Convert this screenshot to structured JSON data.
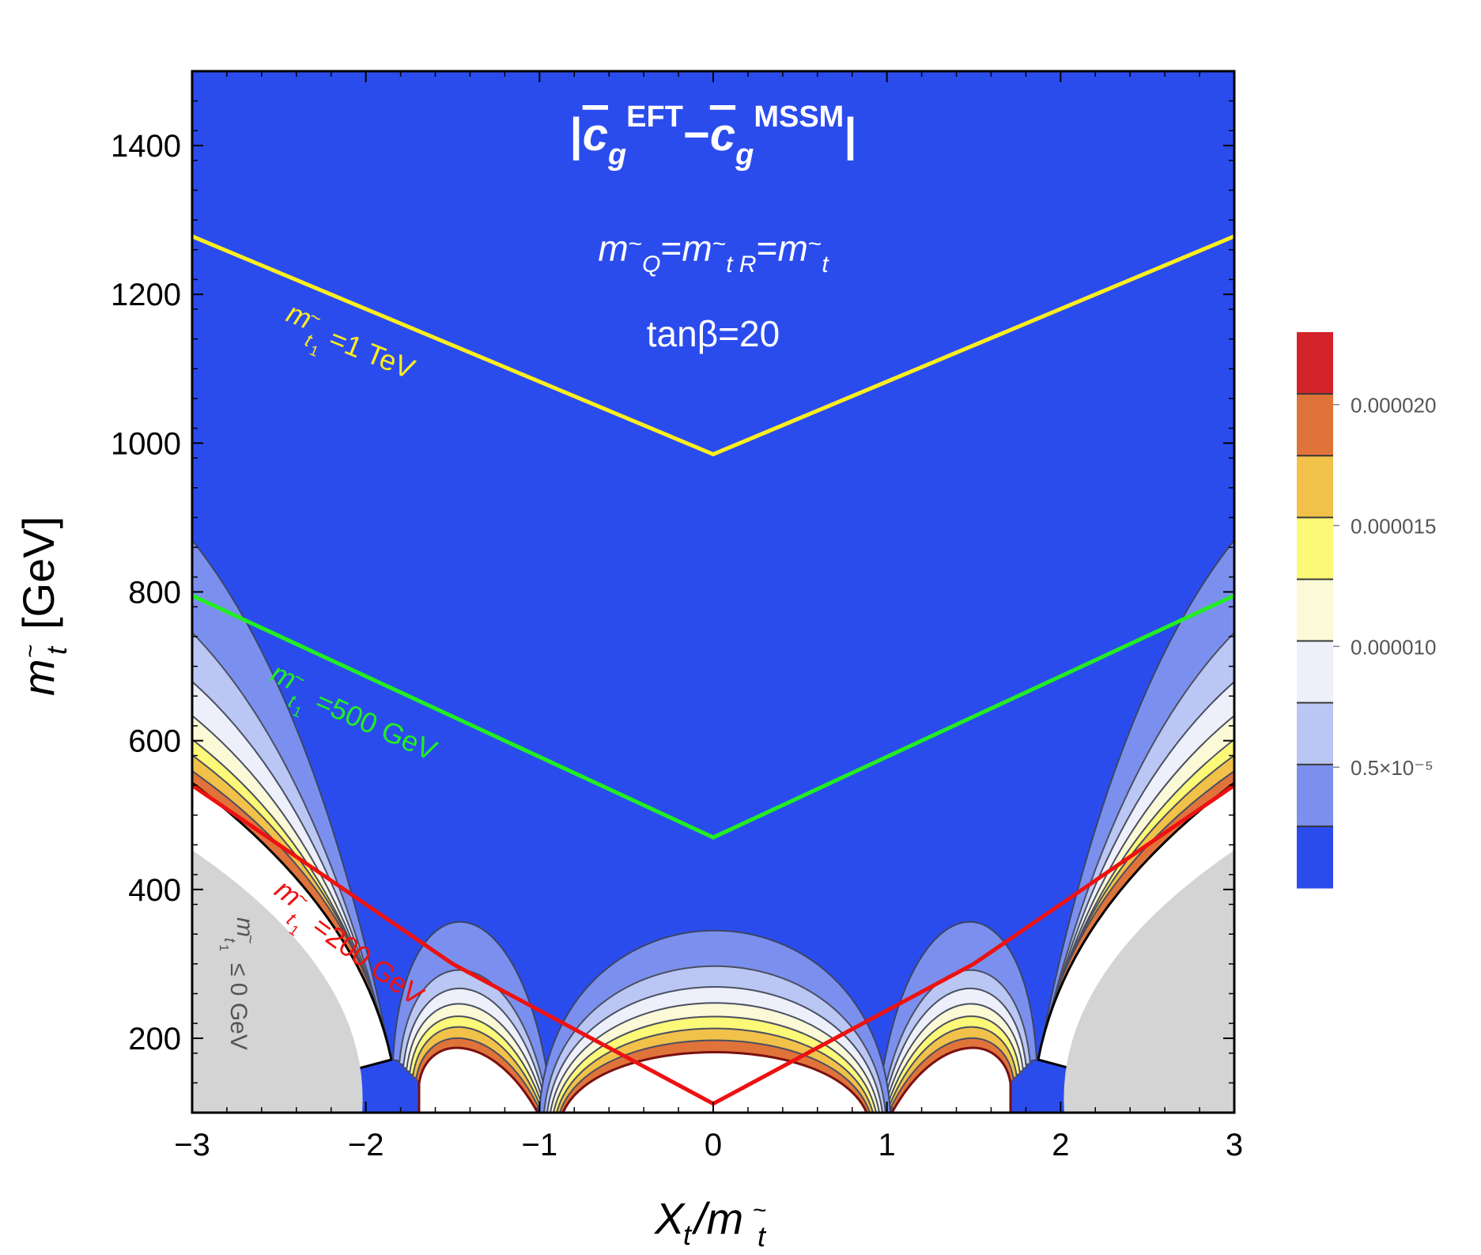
{
  "chart_data": {
    "type": "contour",
    "title": "|c̄_g^EFT − c̄_g^MSSM|",
    "annotations": {
      "mass_condition": "m_Q̃ = m_t̃R = m_t̃",
      "tan_beta": "tanβ=20",
      "excluded_region": "m_t̃1 ≤ 0 GeV",
      "yellow_line_label": "=1 TeV",
      "green_line_label": "=500 GeV",
      "red_line_label": "=200 GeV"
    },
    "xlabel": "X_t/m_t̃",
    "ylabel": "m_t̃ [GeV]",
    "xlim": [
      -3,
      3
    ],
    "ylim": [
      100,
      1500
    ],
    "xticks": [
      "−3",
      "−2",
      "−1",
      "0",
      "1",
      "2",
      "3"
    ],
    "yticks": [
      "200",
      "400",
      "600",
      "800",
      "1000",
      "1200",
      "1400"
    ],
    "colorbar": {
      "ticks": [
        "0.5×10⁻⁵",
        "0.000010",
        "0.000015",
        "0.000020"
      ],
      "tick_values": [
        5e-06,
        1e-05,
        1.5e-05,
        2e-05
      ],
      "range": [
        0,
        2.3e-05
      ],
      "colors": [
        "#2b4ced",
        "#7b90ee",
        "#bac6f4",
        "#edf0fa",
        "#fbf9d6",
        "#fdf978",
        "#f1c14a",
        "#e0733a",
        "#d3242a"
      ]
    },
    "series": [
      {
        "name": "=1 TeV",
        "color": "#ffef1c",
        "x": [
          -3,
          0,
          3
        ],
        "y": [
          1278,
          985,
          1278
        ]
      },
      {
        "name": "=500 GeV",
        "color": "#22ee22",
        "x": [
          -3,
          0,
          3
        ],
        "y": [
          795,
          470,
          795
        ]
      },
      {
        "name": "=200 GeV",
        "color": "#ee1111",
        "x": [
          -3,
          -1.5,
          0,
          1.5,
          3
        ],
        "y": [
          540,
          300,
          112,
          300,
          540
        ]
      }
    ],
    "excluded_region_color": "#d4d4d4"
  }
}
